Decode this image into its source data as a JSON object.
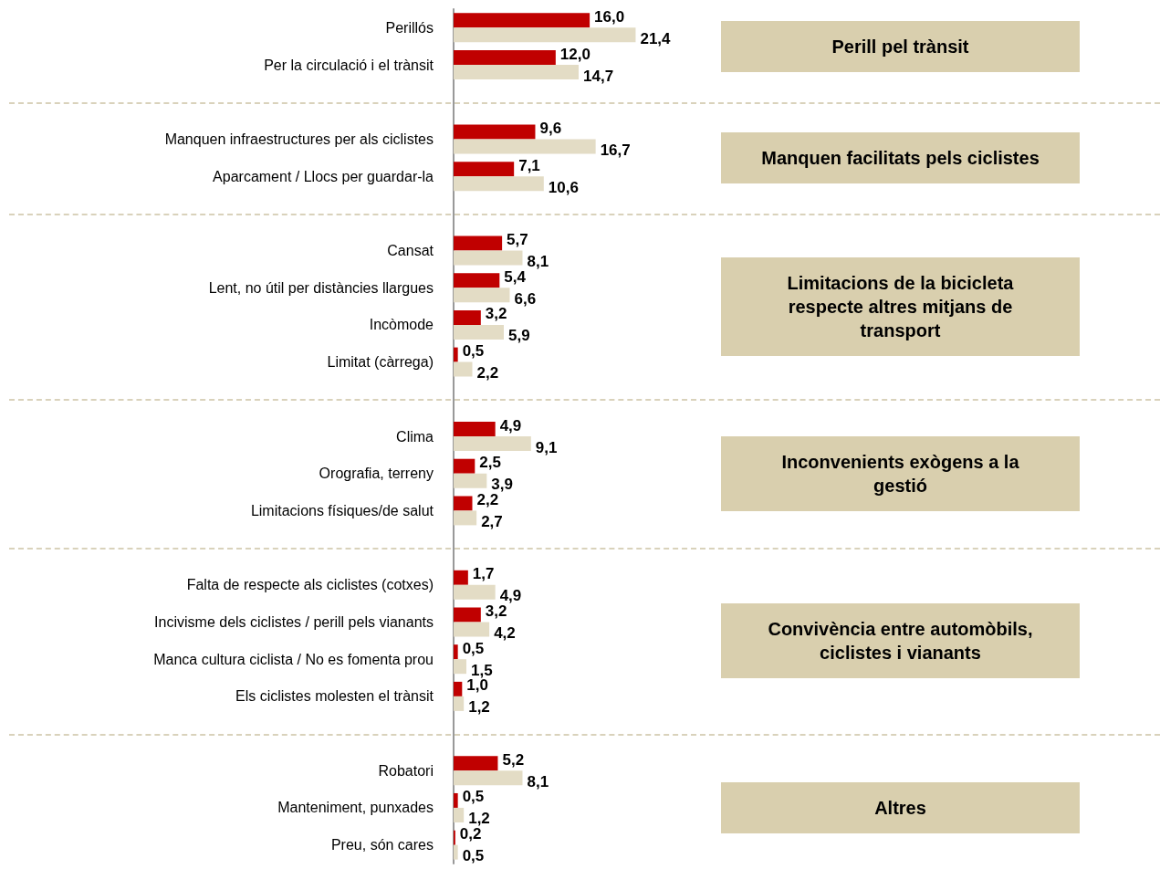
{
  "chart_data": {
    "type": "bar",
    "orientation": "horizontal",
    "grid": true,
    "categories": [
      "Perillós",
      "Per la circulació i el trànsit",
      null,
      "Manquen infraestructures per als ciclistes",
      "Aparcament / Llocs per guardar-la",
      null,
      "Cansat",
      "Lent, no útil per distàncies llargues",
      "Incòmode",
      "Limitat (càrrega)",
      null,
      "Clima",
      "Orografia, terreny",
      "Limitacions físiques/de salut",
      null,
      "Falta de respecte als ciclistes (cotxes)",
      "Incivisme dels ciclistes / perill pels vianants",
      "Manca cultura ciclista / No es fomenta prou",
      "Els ciclistes molesten el trànsit",
      null,
      "Robatori",
      "Manteniment, punxades",
      "Preu, són cares"
    ],
    "series": [
      {
        "color": "#c00000",
        "values": [
          16.0,
          12.0,
          null,
          9.6,
          7.1,
          null,
          5.7,
          5.4,
          3.2,
          0.5,
          null,
          4.9,
          2.5,
          2.2,
          null,
          1.7,
          3.2,
          0.5,
          1.0,
          null,
          5.2,
          0.5,
          0.2
        ],
        "value_labels": [
          "16,0",
          "12,0",
          null,
          "9,6",
          "7,1",
          null,
          "5,7",
          "5,4",
          "3,2",
          "0,5",
          null,
          "4,9",
          "2,5",
          "2,2",
          null,
          "1,7",
          "3,2",
          "0,5",
          "1,0",
          null,
          "5,2",
          "0,5",
          "0,2"
        ]
      },
      {
        "color": "#e3dcc5",
        "values": [
          21.4,
          14.7,
          null,
          16.7,
          10.6,
          null,
          8.1,
          6.6,
          5.9,
          2.2,
          null,
          9.1,
          3.9,
          2.7,
          null,
          4.9,
          4.2,
          1.5,
          1.2,
          null,
          8.1,
          1.2,
          0.5
        ],
        "value_labels": [
          "21,4",
          "14,7",
          null,
          "16,7",
          "10,6",
          null,
          "8,1",
          "6,6",
          "5,9",
          "2,2",
          null,
          "9,1",
          "3,9",
          "2,7",
          null,
          "4,9",
          "4,2",
          "1,5",
          "1,2",
          null,
          "8,1",
          "1,2",
          "0,5"
        ]
      }
    ],
    "annotations": [
      "Perill pel trànsit",
      "Manquen facilitats pels ciclistes",
      "Limitacions de la bicicleta respecte altres mitjans de transport",
      "Inconvenients exògens a la gestió",
      "Convivència entre automòbils, ciclistes i vianants",
      "Altres"
    ],
    "tick_labels": "y"
  }
}
